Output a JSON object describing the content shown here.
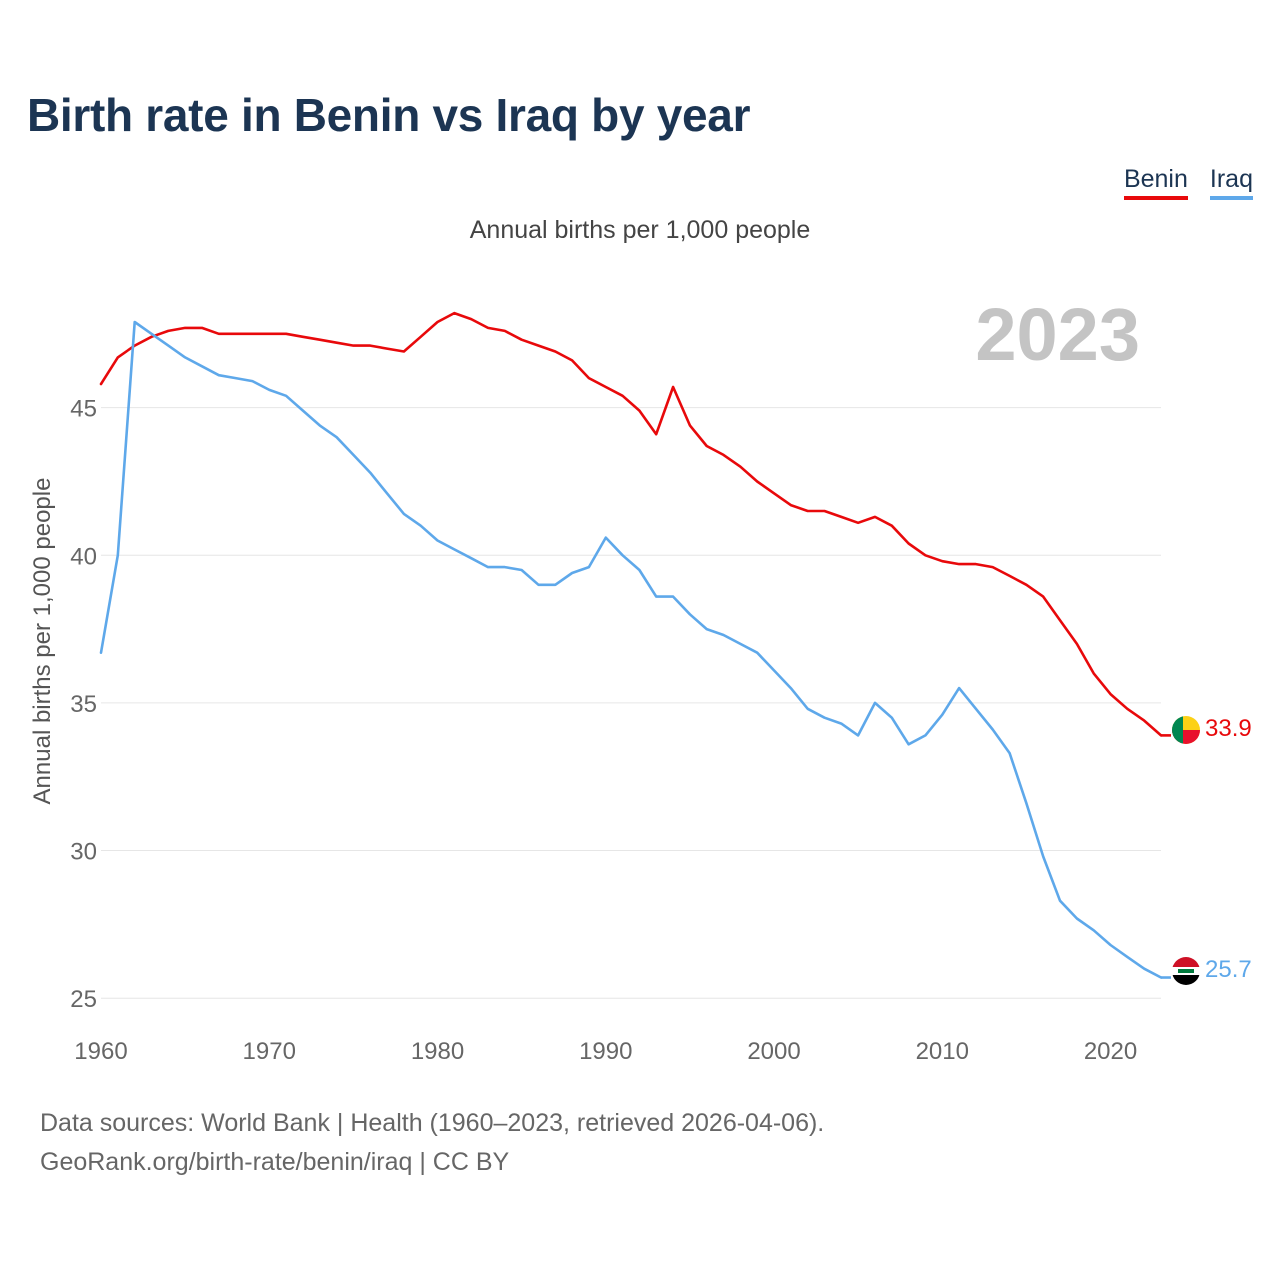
{
  "header": {
    "title": "Birth rate in Benin vs Iraq by year",
    "subtitle": "Annual births per 1,000 people"
  },
  "legend": [
    {
      "label": "Benin",
      "color": "#e8090b"
    },
    {
      "label": "Iraq",
      "color": "#5ea8ea"
    }
  ],
  "year_overlay": "2023",
  "footer": {
    "line1": "Data sources: World Bank | Health (1960–2023, retrieved 2026-04-06).",
    "line2": "GeoRank.org/birth-rate/benin/iraq | CC BY"
  },
  "chart_data": {
    "type": "line",
    "title": "Birth rate in Benin vs Iraq by year",
    "xlabel": "",
    "ylabel": "Annual births per 1,000 people",
    "xlim": [
      1960,
      2023
    ],
    "ylim": [
      24.6,
      50
    ],
    "yticks": [
      25,
      30,
      35,
      40,
      45
    ],
    "xticks": [
      1960,
      1970,
      1980,
      1990,
      2000,
      2010,
      2020
    ],
    "grid": true,
    "x": [
      1960,
      1961,
      1962,
      1963,
      1964,
      1965,
      1966,
      1967,
      1968,
      1969,
      1970,
      1971,
      1972,
      1973,
      1974,
      1975,
      1976,
      1977,
      1978,
      1979,
      1980,
      1981,
      1982,
      1983,
      1984,
      1985,
      1986,
      1987,
      1988,
      1989,
      1990,
      1991,
      1992,
      1993,
      1994,
      1995,
      1996,
      1997,
      1998,
      1999,
      2000,
      2001,
      2002,
      2003,
      2004,
      2005,
      2006,
      2007,
      2008,
      2009,
      2010,
      2011,
      2012,
      2013,
      2014,
      2015,
      2016,
      2017,
      2018,
      2019,
      2020,
      2021,
      2022,
      2023
    ],
    "series": [
      {
        "name": "Benin",
        "color": "#e8090b",
        "end_label": "33.9",
        "flag": "benin-flag-icon",
        "values": [
          45.8,
          46.7,
          47.1,
          47.4,
          47.6,
          47.7,
          47.7,
          47.5,
          47.5,
          47.5,
          47.5,
          47.5,
          47.4,
          47.3,
          47.2,
          47.1,
          47.1,
          47.0,
          46.9,
          47.4,
          47.9,
          48.2,
          48.0,
          47.7,
          47.6,
          47.3,
          47.1,
          46.9,
          46.6,
          46.0,
          45.7,
          45.4,
          44.9,
          44.1,
          45.7,
          44.4,
          43.7,
          43.4,
          43.0,
          42.5,
          42.1,
          41.7,
          41.5,
          41.5,
          41.3,
          41.1,
          41.3,
          41.0,
          40.4,
          40.0,
          39.8,
          39.7,
          39.7,
          39.6,
          39.3,
          39.0,
          38.6,
          37.8,
          37.0,
          36.0,
          35.3,
          34.8,
          34.4,
          33.9
        ]
      },
      {
        "name": "Iraq",
        "color": "#5ea8ea",
        "end_label": "25.7",
        "flag": "iraq-flag-icon",
        "values": [
          36.7,
          40.0,
          47.9,
          47.5,
          47.1,
          46.7,
          46.4,
          46.1,
          46.0,
          45.9,
          45.6,
          45.4,
          44.9,
          44.4,
          44.0,
          43.4,
          42.8,
          42.1,
          41.4,
          41.0,
          40.5,
          40.2,
          39.9,
          39.6,
          39.6,
          39.5,
          39.0,
          39.0,
          39.4,
          39.6,
          40.6,
          40.0,
          39.5,
          38.6,
          38.6,
          38.0,
          37.5,
          37.3,
          37.0,
          36.7,
          36.1,
          35.5,
          34.8,
          34.5,
          34.3,
          33.9,
          35.0,
          34.5,
          33.6,
          33.9,
          34.6,
          35.5,
          34.8,
          34.1,
          33.3,
          31.6,
          29.8,
          28.3,
          27.7,
          27.3,
          26.8,
          26.4,
          26.0,
          25.7
        ]
      }
    ]
  }
}
